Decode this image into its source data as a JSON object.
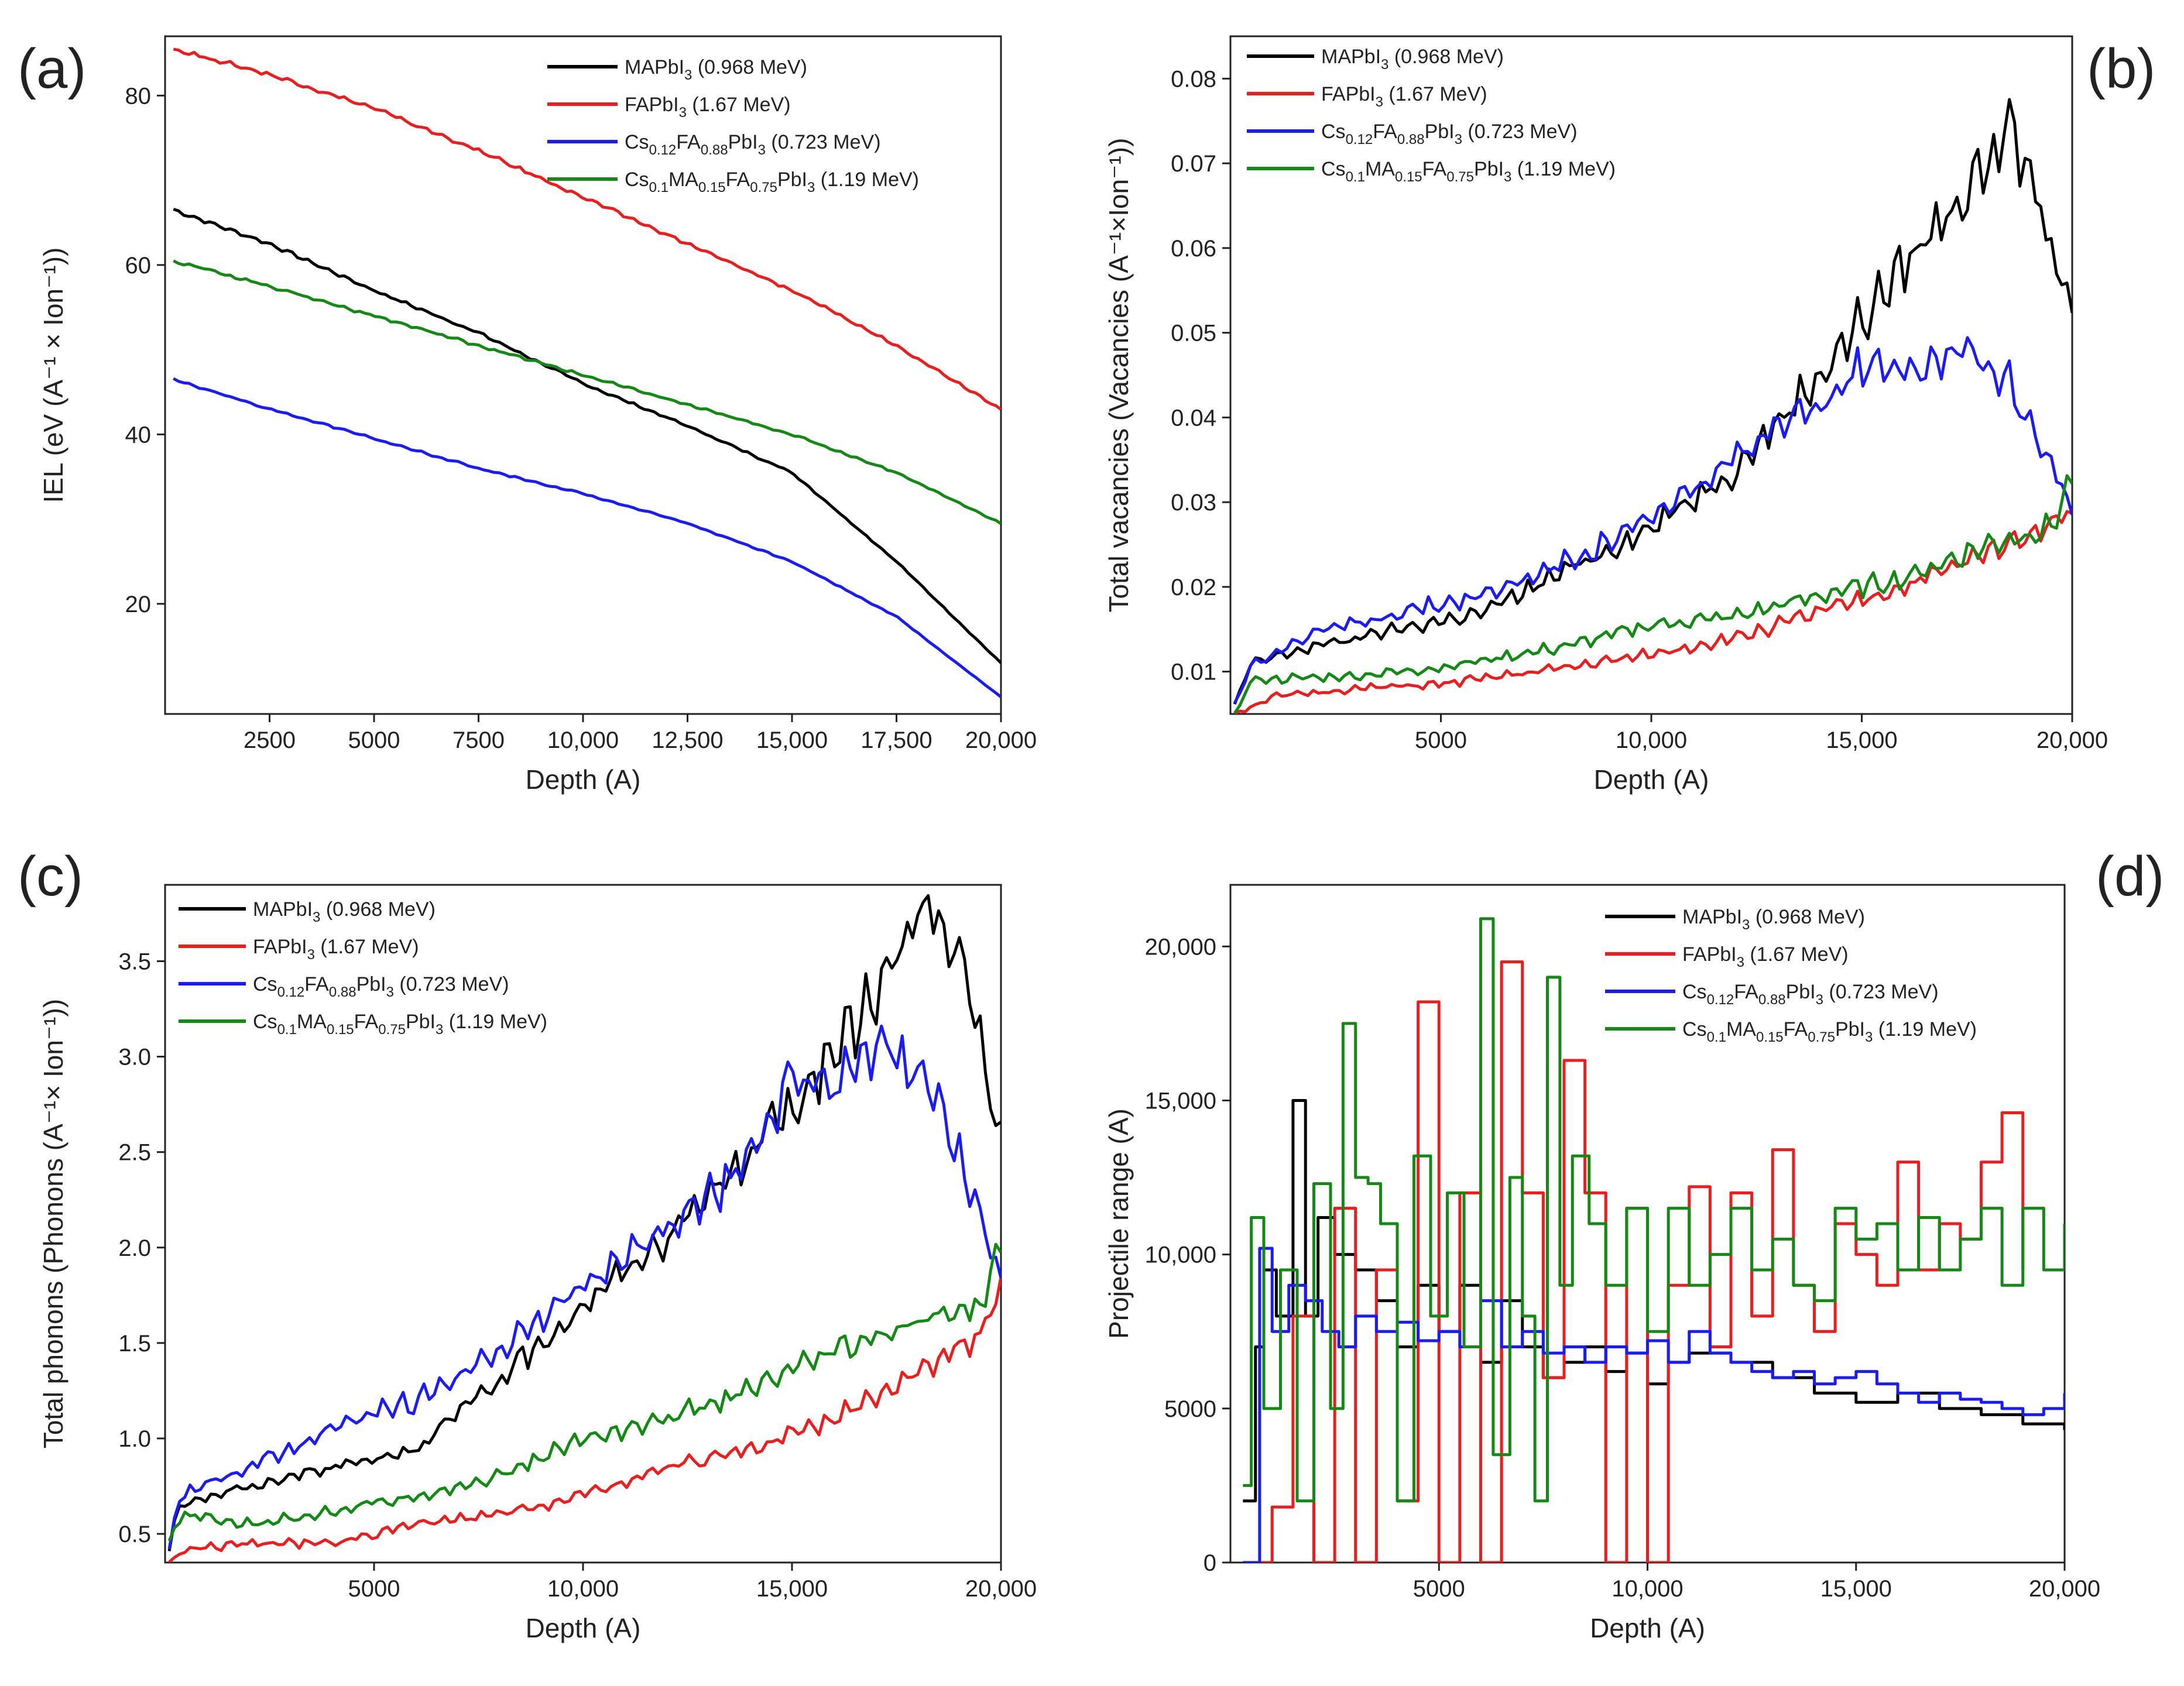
{
  "figure": {
    "colors": {
      "MAPbI3": "#000000",
      "FAPbI3": "#ee1c1c",
      "Cs012": "#1a1aff",
      "Cs01": "#138a13",
      "axis": "#222222"
    }
  },
  "chart_data": [
    {
      "id": "a",
      "panel_label": "(a)",
      "type": "line",
      "xlabel": "Depth (A)",
      "ylabel": "IEL (eV (A⁻¹ × Ion⁻¹))",
      "xlim": [
        0,
        20000
      ],
      "ylim": [
        7,
        87
      ],
      "xticks": [
        2500,
        5000,
        7500,
        10000,
        12500,
        15000,
        17500,
        20000
      ],
      "xtick_labels": [
        "2500",
        "5000",
        "7500",
        "10,000",
        "12,500",
        "15,000",
        "17,500",
        "20,000"
      ],
      "yticks": [
        20,
        40,
        60,
        80
      ],
      "ytick_labels": [
        "20",
        "40",
        "60",
        "80"
      ],
      "legend_position": "top-right",
      "series": [
        {
          "name": "MAPbI3 (0.968 MeV)",
          "key": "MAPbI3",
          "x": [
            200,
            2500,
            5000,
            7500,
            10000,
            12500,
            15000,
            17500,
            20000
          ],
          "values": [
            66.5,
            62.5,
            57,
            52,
            46,
            41,
            35.5,
            25,
            13
          ]
        },
        {
          "name": "FAPbI3 (1.67 MeV)",
          "key": "FAPbI3",
          "x": [
            200,
            2500,
            5000,
            7500,
            10000,
            12500,
            15000,
            17500,
            20000
          ],
          "values": [
            85.5,
            82.5,
            78.5,
            73.5,
            68,
            62.5,
            57,
            50.5,
            43
          ]
        },
        {
          "name": "Cs0.12FA0.88PbI3 (0.723 MeV)",
          "key": "Cs012",
          "x": [
            200,
            2500,
            5000,
            7500,
            10000,
            12500,
            15000,
            17500,
            20000
          ],
          "values": [
            46.5,
            43,
            39.5,
            36,
            33,
            29.5,
            25,
            18.5,
            9
          ]
        },
        {
          "name": "Cs0.1MA0.15FA0.75PbI3 (1.19 MeV)",
          "key": "Cs01",
          "x": [
            200,
            2500,
            5000,
            7500,
            10000,
            12500,
            15000,
            17500,
            20000
          ],
          "values": [
            60.5,
            57.5,
            54,
            50.5,
            47,
            43.5,
            40,
            35.5,
            29.5
          ]
        }
      ]
    },
    {
      "id": "b",
      "panel_label": "(b)",
      "type": "line",
      "xlabel": "Depth (A)",
      "ylabel": "Total vacancies (Vacancies (A⁻¹×Ion⁻¹))",
      "xlim": [
        0,
        20000
      ],
      "ylim": [
        0.005,
        0.085
      ],
      "xticks": [
        5000,
        10000,
        15000,
        20000
      ],
      "xtick_labels": [
        "5000",
        "10,000",
        "15,000",
        "20,000"
      ],
      "yticks": [
        0.01,
        0.02,
        0.03,
        0.04,
        0.05,
        0.06,
        0.07,
        0.08
      ],
      "ytick_labels": [
        "0.01",
        "0.02",
        "0.03",
        "0.04",
        "0.05",
        "0.06",
        "0.07",
        "0.08"
      ],
      "legend_position": "top-left",
      "series": [
        {
          "name": "MAPbI3 (0.968 MeV)",
          "key": "MAPbI3",
          "x": [
            100,
            500,
            2000,
            4000,
            6000,
            8000,
            10000,
            12000,
            14000,
            16000,
            17500,
            18500,
            19200,
            20000
          ],
          "values": [
            0.006,
            0.011,
            0.013,
            0.015,
            0.017,
            0.022,
            0.027,
            0.034,
            0.045,
            0.058,
            0.067,
            0.074,
            0.066,
            0.051
          ]
        },
        {
          "name": "FAPbI3 (1.67 MeV)",
          "key": "FAPbI3",
          "x": [
            100,
            1000,
            3000,
            5000,
            8000,
            10000,
            12000,
            14000,
            16000,
            18000,
            20000
          ],
          "values": [
            0.005,
            0.007,
            0.008,
            0.0085,
            0.0105,
            0.012,
            0.014,
            0.017,
            0.02,
            0.024,
            0.029
          ]
        },
        {
          "name": "Cs0.12FA0.88PbI3 (0.723 MeV)",
          "key": "Cs012",
          "x": [
            100,
            500,
            2000,
            4000,
            6000,
            8000,
            10000,
            12000,
            14000,
            15200,
            16500,
            17400,
            18500,
            19500,
            20000
          ],
          "values": [
            0.006,
            0.011,
            0.0145,
            0.017,
            0.019,
            0.023,
            0.028,
            0.035,
            0.042,
            0.047,
            0.046,
            0.049,
            0.044,
            0.035,
            0.028
          ]
        },
        {
          "name": "Cs0.1MA0.15FA0.75PbI3 (1.19 MeV)",
          "key": "Cs01",
          "x": [
            100,
            500,
            3000,
            5000,
            8000,
            10000,
            12000,
            14000,
            16000,
            18000,
            19500,
            20000
          ],
          "values": [
            0.005,
            0.009,
            0.0095,
            0.0105,
            0.013,
            0.0155,
            0.0165,
            0.019,
            0.021,
            0.025,
            0.027,
            0.033
          ]
        }
      ]
    },
    {
      "id": "c",
      "panel_label": "(c)",
      "type": "line",
      "xlabel": "Depth (A)",
      "ylabel": "Total phonons (Phonons (A⁻¹× Ion⁻¹))",
      "xlim": [
        0,
        20000
      ],
      "ylim": [
        0.35,
        3.9
      ],
      "xticks": [
        5000,
        10000,
        15000,
        20000
      ],
      "xtick_labels": [
        "5000",
        "10,000",
        "15,000",
        "20,000"
      ],
      "yticks": [
        0.5,
        1.0,
        1.5,
        2.0,
        2.5,
        3.0,
        3.5
      ],
      "ytick_labels": [
        "0.5",
        "1.0",
        "1.5",
        "2.0",
        "2.5",
        "3.0",
        "3.5"
      ],
      "legend_position": "top-left",
      "series": [
        {
          "name": "MAPbI3 (0.968 MeV)",
          "key": "MAPbI3",
          "x": [
            100,
            300,
            2000,
            4000,
            6000,
            8000,
            10000,
            12000,
            14000,
            16000,
            17500,
            18200,
            19000,
            20000
          ],
          "values": [
            0.4,
            0.65,
            0.75,
            0.85,
            0.95,
            1.3,
            1.7,
            2.05,
            2.5,
            3.0,
            3.5,
            3.8,
            3.5,
            2.6
          ]
        },
        {
          "name": "FAPbI3 (1.67 MeV)",
          "key": "FAPbI3",
          "x": [
            100,
            500,
            2000,
            4000,
            6000,
            8000,
            10000,
            12000,
            14000,
            16000,
            18000,
            19500,
            20000
          ],
          "values": [
            0.35,
            0.42,
            0.45,
            0.45,
            0.55,
            0.6,
            0.7,
            0.85,
            0.95,
            1.1,
            1.35,
            1.55,
            1.75
          ]
        },
        {
          "name": "Cs0.12FA0.88PbI3 (0.723 MeV)",
          "key": "Cs012",
          "x": [
            100,
            300,
            2000,
            4000,
            6000,
            8000,
            10000,
            12000,
            14000,
            15000,
            16000,
            17200,
            18500,
            19500,
            20000
          ],
          "values": [
            0.4,
            0.7,
            0.85,
            1.05,
            1.2,
            1.45,
            1.8,
            2.1,
            2.45,
            2.9,
            2.85,
            3.05,
            2.75,
            2.2,
            1.8
          ]
        },
        {
          "name": "Cs0.1MA0.15FA0.75PbI3 (1.19 MeV)",
          "key": "Cs01",
          "x": [
            100,
            400,
            2000,
            4000,
            6000,
            8000,
            10000,
            12000,
            14000,
            16000,
            18000,
            19500,
            20000
          ],
          "values": [
            0.45,
            0.6,
            0.55,
            0.62,
            0.7,
            0.8,
            1.0,
            1.1,
            1.25,
            1.45,
            1.6,
            1.7,
            2.0
          ]
        }
      ]
    },
    {
      "id": "d",
      "panel_label": "(d)",
      "type": "line",
      "xlabel": "Depth (A)",
      "ylabel": "Projectile range (A)",
      "xlim": [
        0,
        20000
      ],
      "ylim": [
        0,
        22000
      ],
      "xticks": [
        5000,
        10000,
        15000,
        20000
      ],
      "xtick_labels": [
        "5000",
        "10,000",
        "15,000",
        "20,000"
      ],
      "yticks": [
        0,
        5000,
        10000,
        15000,
        20000
      ],
      "ytick_labels": [
        "0",
        "5000",
        "10,000",
        "15,000",
        "20,000"
      ],
      "legend_position": "top-right",
      "series": [
        {
          "name": "MAPbI3 (0.968 MeV)",
          "key": "MAPbI3",
          "x": [
            300,
            600,
            800,
            1100,
            1500,
            1800,
            2100,
            2500,
            3000,
            3500,
            4000,
            4500,
            5000,
            5500,
            6000,
            6500,
            7000,
            7500,
            8000,
            8500,
            9000,
            9500,
            10000,
            10500,
            11000,
            12000,
            13000,
            14000,
            15000,
            16000,
            17000,
            18000,
            19000,
            20000
          ],
          "values": [
            2000,
            7000,
            9500,
            8000,
            15000,
            8000,
            11200,
            10000,
            9500,
            8500,
            7000,
            9000,
            7500,
            9000,
            6500,
            8500,
            7000,
            6000,
            6500,
            7000,
            6200,
            6800,
            5800,
            6500,
            6800,
            6500,
            6000,
            5500,
            5200,
            5500,
            5000,
            4800,
            4500,
            4300
          ]
        },
        {
          "name": "FAPbI3 (1.67 MeV)",
          "key": "FAPbI3",
          "x": [
            500,
            1000,
            1500,
            2000,
            2500,
            3000,
            3500,
            4000,
            4500,
            5000,
            5500,
            6000,
            6500,
            7000,
            7500,
            8000,
            8500,
            9000,
            9500,
            10000,
            10500,
            11000,
            11500,
            12000,
            12500,
            13000,
            13500,
            14000,
            14500,
            15000,
            15500,
            16000,
            16500,
            17000,
            17500,
            18000,
            18500,
            19000
          ],
          "values": [
            0,
            1800,
            8000,
            0,
            11500,
            0,
            9500,
            2000,
            18200,
            0,
            12000,
            0,
            19500,
            12000,
            6000,
            16300,
            12000,
            0,
            11500,
            0,
            9000,
            12200,
            7000,
            12000,
            8000,
            13400,
            9000,
            7500,
            11000,
            10000,
            9000,
            13000,
            9500,
            11000,
            10500,
            13000,
            14600,
            9500
          ]
        },
        {
          "name": "Cs0.12FA0.88PbI3 (0.723 MeV)",
          "key": "Cs012",
          "x": [
            300,
            700,
            1000,
            1400,
            1800,
            2200,
            2600,
            3000,
            3500,
            4000,
            4500,
            5000,
            5500,
            6000,
            6500,
            7000,
            7500,
            8000,
            8500,
            9000,
            9500,
            10000,
            10500,
            11000,
            11500,
            12000,
            12500,
            13000,
            13500,
            14000,
            14500,
            15000,
            15500,
            16000,
            16500,
            17000,
            17500,
            18000,
            18500,
            19000,
            19500,
            20000
          ],
          "values": [
            0,
            10200,
            7500,
            9000,
            8500,
            7500,
            7000,
            8000,
            7500,
            7800,
            7200,
            7500,
            7000,
            8500,
            7000,
            7500,
            6800,
            7000,
            6500,
            7000,
            6800,
            7200,
            6500,
            7500,
            6800,
            6500,
            6200,
            6000,
            6200,
            5800,
            6000,
            6200,
            5800,
            5500,
            5200,
            5500,
            5300,
            5200,
            5000,
            4800,
            5000,
            5500
          ]
        },
        {
          "name": "Cs0.1MA0.15FA0.75PbI3 (1.19 MeV)",
          "key": "Cs01",
          "x": [
            300,
            500,
            800,
            1200,
            1600,
            2000,
            2400,
            2700,
            3000,
            3300,
            3600,
            4000,
            4400,
            4800,
            5200,
            5600,
            6000,
            6300,
            6700,
            7000,
            7300,
            7600,
            7900,
            8200,
            8600,
            9000,
            9500,
            10000,
            10500,
            11000,
            11500,
            12000,
            12500,
            13000,
            13500,
            14000,
            14500,
            15000,
            15500,
            16000,
            16500,
            17000,
            17500,
            18000,
            18500,
            19000,
            19500,
            20000
          ],
          "values": [
            2500,
            11200,
            5000,
            9500,
            2000,
            12300,
            5000,
            17500,
            12500,
            12300,
            11000,
            2000,
            13200,
            8000,
            12000,
            7000,
            20900,
            3500,
            12500,
            8000,
            2000,
            19000,
            9000,
            13200,
            11000,
            9000,
            11500,
            7500,
            11500,
            9000,
            10000,
            11500,
            9500,
            10500,
            9000,
            8500,
            11500,
            10500,
            11000,
            9500,
            11200,
            9500,
            10500,
            11500,
            9000,
            11500,
            9500,
            11000
          ]
        }
      ]
    }
  ],
  "legend_labels": {
    "MAPbI3": {
      "prefix": "MAPbI",
      "parts": [
        [
          "3",
          "sub"
        ]
      ],
      "energy": " (0.968 MeV)"
    },
    "FAPbI3": {
      "prefix": "FAPbI",
      "parts": [
        [
          "3",
          "sub"
        ]
      ],
      "energy": " (1.67 MeV)"
    },
    "Cs012": {
      "prefix": "Cs",
      "parts": [
        [
          "0.12",
          "sub"
        ],
        [
          "FA",
          "norm"
        ],
        [
          "0.88",
          "sub"
        ],
        [
          "PbI",
          "norm"
        ],
        [
          "3",
          "sub"
        ]
      ],
      "energy": " (0.723 MeV)"
    },
    "Cs01": {
      "prefix": "Cs",
      "parts": [
        [
          "0.1",
          "sub"
        ],
        [
          "MA",
          "norm"
        ],
        [
          "0.15",
          "sub"
        ],
        [
          "FA",
          "norm"
        ],
        [
          "0.75",
          "sub"
        ],
        [
          "PbI",
          "norm"
        ],
        [
          "3",
          "sub"
        ]
      ],
      "energy": " (1.19 MeV)"
    }
  }
}
